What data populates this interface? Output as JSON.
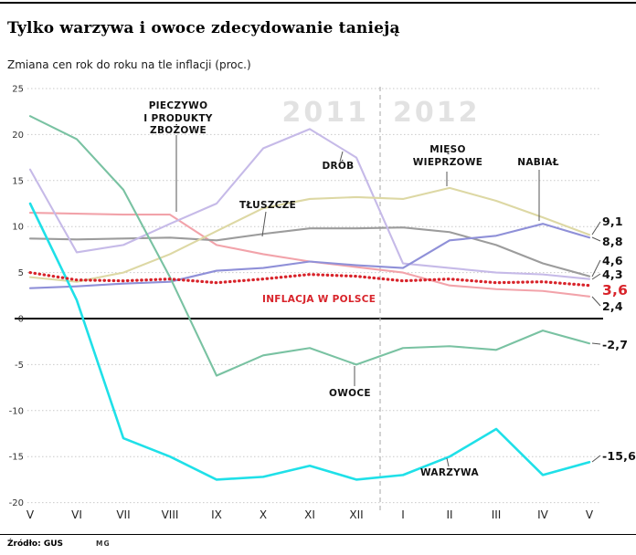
{
  "header": {
    "title": "Tylko warzywa i owoce zdecydowanie tanieją",
    "subtitle": "Zmiana cen rok do roku na tle inflacji (proc.)"
  },
  "watermarks": {
    "year_left": "2011",
    "year_right": "2012"
  },
  "footer": {
    "source": "Źródło: GUS",
    "mark": "MG"
  },
  "annotations": {
    "pieczywo": "PIECZYWO\nI PRODUKTY\nZBOŻOWE",
    "drob": "DRÓB",
    "tluszcze": "TŁUSZCZE",
    "mieso": "MIĘSO\nWIEPRZOWE",
    "nabial": "NABIAŁ",
    "inflacja": "INFLACJA W POLSCE",
    "owoce": "OWOCE",
    "warzywa": "WARZYWA"
  },
  "chart_data": {
    "type": "line",
    "title": "Tylko warzywa i owoce zdecydowanie tanieją",
    "subtitle": "Zmiana cen rok do roku na tle inflacji (proc.)",
    "x_labels": [
      "V",
      "VI",
      "VII",
      "VIII",
      "IX",
      "X",
      "XI",
      "XII",
      "I",
      "II",
      "III",
      "IV",
      "V"
    ],
    "year_split": {
      "left_year": "2011",
      "right_year": "2012",
      "divider_after_index": 7
    },
    "y_ticks": [
      25,
      20,
      15,
      10,
      5,
      0,
      -5,
      -10,
      -15,
      -20
    ],
    "ylim": [
      -20,
      25
    ],
    "grid": true,
    "legend_position": "inline-annotations",
    "series": [
      {
        "id": "pieczywo-i-produkty-zbozowe",
        "name": "PIECZYWO I PRODUKTY ZBOŻOWE",
        "color": "#f2a3aa",
        "end_label": "2,4",
        "values": [
          11.5,
          11.4,
          11.3,
          11.3,
          8.0,
          7.0,
          6.2,
          5.6,
          5.0,
          3.6,
          3.2,
          3.0,
          2.4
        ]
      },
      {
        "id": "tluszcze",
        "name": "TŁUSZCZE",
        "color": "#9c9c9c",
        "end_label": "4,6",
        "values": [
          8.7,
          8.6,
          8.7,
          8.8,
          8.5,
          9.2,
          9.8,
          9.8,
          9.9,
          9.4,
          8.0,
          6.0,
          4.6
        ]
      },
      {
        "id": "drob",
        "name": "DRÓB",
        "color": "#c6bae8",
        "end_label": "4,3",
        "values": [
          16.2,
          7.2,
          8.0,
          10.3,
          12.5,
          18.5,
          20.6,
          17.5,
          6.0,
          5.5,
          5.0,
          4.8,
          4.3
        ]
      },
      {
        "id": "mieso-wieprzowe",
        "name": "MIĘSO WIEPRZOWE",
        "color": "#ddd8a4",
        "end_label": "9,1",
        "values": [
          4.5,
          4.0,
          5.0,
          7.0,
          9.5,
          12.0,
          13.0,
          13.2,
          13.0,
          14.2,
          12.8,
          11.0,
          9.1
        ]
      },
      {
        "id": "nabial",
        "name": "NABIAŁ",
        "color": "#8f90d8",
        "end_label": "8,8",
        "values": [
          3.3,
          3.5,
          3.8,
          4.0,
          5.2,
          5.5,
          6.2,
          5.8,
          5.5,
          8.5,
          9.0,
          10.3,
          8.8
        ]
      },
      {
        "id": "owoce",
        "name": "OWOCE",
        "color": "#79c2a2",
        "end_label": "-2,7",
        "values": [
          22.0,
          19.5,
          14.0,
          4.5,
          -6.2,
          -4.0,
          -3.2,
          -5.0,
          -3.2,
          -3.0,
          -3.4,
          -1.3,
          -2.7
        ]
      },
      {
        "id": "warzywa",
        "name": "WARZYWA",
        "color": "#1fe0e8",
        "end_label": "-15,6",
        "values": [
          12.5,
          2.0,
          -13.0,
          -15.0,
          -17.5,
          -17.2,
          -16.0,
          -17.5,
          -17.0,
          -15.0,
          -12.0,
          -17.0,
          -15.6
        ]
      },
      {
        "id": "inflacja-w-polsce",
        "name": "INFLACJA W POLSCE",
        "color": "#d8232a",
        "dotted": true,
        "end_label": "3,6",
        "values": [
          5.0,
          4.2,
          4.1,
          4.3,
          3.9,
          4.3,
          4.8,
          4.6,
          4.1,
          4.3,
          3.9,
          4.0,
          3.6
        ]
      }
    ]
  }
}
